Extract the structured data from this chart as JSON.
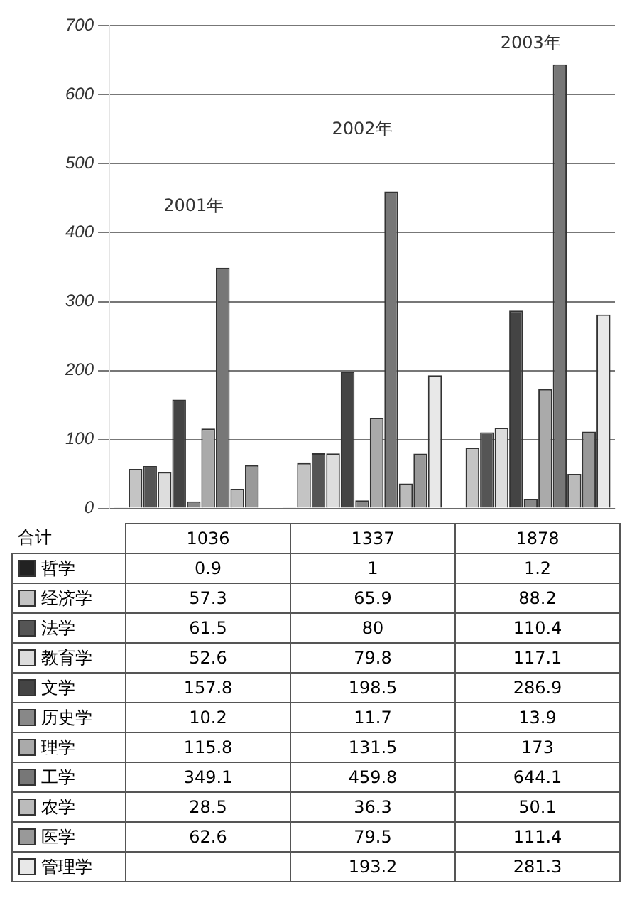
{
  "chart_data": {
    "type": "bar",
    "categories": [
      "2001年",
      "2002年",
      "2003年"
    ],
    "series": [
      {
        "name": "哲学",
        "color": "#222222",
        "values": [
          0.9,
          1,
          1.2
        ]
      },
      {
        "name": "经济学",
        "color": "#c4c4c4",
        "values": [
          57.3,
          65.9,
          88.2
        ]
      },
      {
        "name": "法学",
        "color": "#555555",
        "values": [
          61.5,
          80,
          110.4
        ]
      },
      {
        "name": "教育学",
        "color": "#dddddd",
        "values": [
          52.6,
          79.8,
          117.1
        ]
      },
      {
        "name": "文学",
        "color": "#444444",
        "values": [
          157.8,
          198.5,
          286.9
        ]
      },
      {
        "name": "历史学",
        "color": "#888888",
        "values": [
          10.2,
          11.7,
          13.9
        ]
      },
      {
        "name": "理学",
        "color": "#aaaaaa",
        "values": [
          115.8,
          131.5,
          173
        ]
      },
      {
        "name": "工学",
        "color": "#777777",
        "values": [
          349.1,
          459.8,
          644.1
        ]
      },
      {
        "name": "农学",
        "color": "#bbbbbb",
        "values": [
          28.5,
          36.3,
          50.1
        ]
      },
      {
        "name": "医学",
        "color": "#999999",
        "values": [
          62.6,
          79.5,
          111.4
        ]
      },
      {
        "name": "管理学",
        "color": "#e8e8e8",
        "values": [
          null,
          193.2,
          281.3
        ]
      }
    ],
    "annotations": [
      "合计",
      "1036",
      "1337",
      "1878"
    ],
    "ylim": [
      0,
      700
    ],
    "yticks": [
      0,
      100,
      200,
      300,
      400,
      500,
      600,
      700
    ],
    "grid": "y",
    "legend": "bottom left",
    "data_labels": true
  }
}
